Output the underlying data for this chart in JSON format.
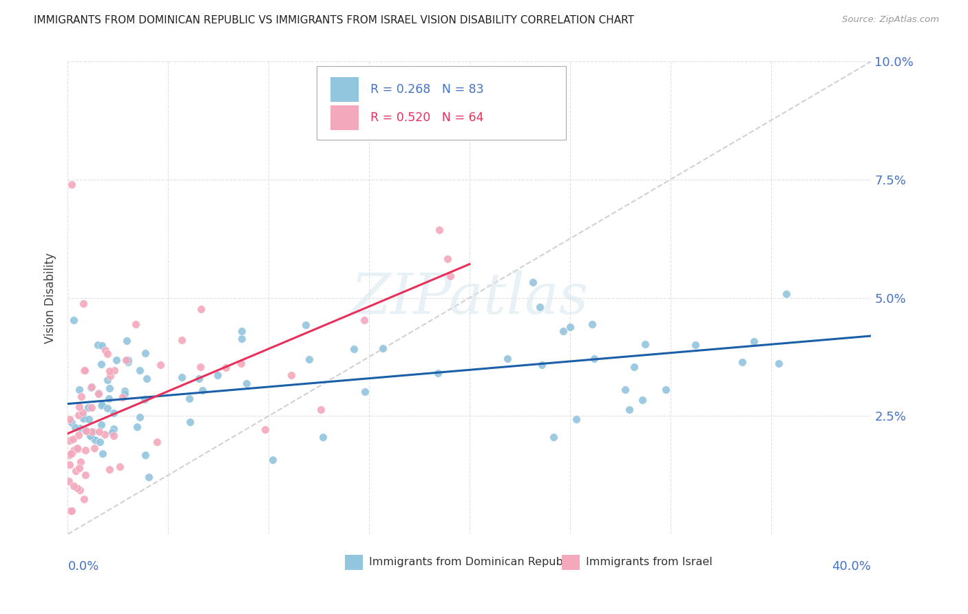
{
  "title": "IMMIGRANTS FROM DOMINICAN REPUBLIC VS IMMIGRANTS FROM ISRAEL VISION DISABILITY CORRELATION CHART",
  "source": "Source: ZipAtlas.com",
  "ylabel": "Vision Disability",
  "xlim": [
    0.0,
    0.4
  ],
  "ylim": [
    0.0,
    0.1
  ],
  "yticks": [
    0.0,
    0.025,
    0.05,
    0.075,
    0.1
  ],
  "ytick_labels": [
    "",
    "2.5%",
    "5.0%",
    "7.5%",
    "10.0%"
  ],
  "color_blue": "#92c5de",
  "color_pink": "#f4a8bc",
  "trendline_blue": "#1a5fa8",
  "trendline_pink": "#e8305a",
  "trendline_gray_color": "#cccccc",
  "background": "#ffffff",
  "watermark": "ZIPatlas",
  "legend_r1_color": "#4472c4",
  "legend_r2_color": "#e8305a",
  "title_color": "#222222",
  "source_color": "#999999",
  "ylabel_color": "#444444",
  "axis_label_color": "#4472c4",
  "grid_color": "#dddddd",
  "legend_edge_color": "#aaaaaa"
}
